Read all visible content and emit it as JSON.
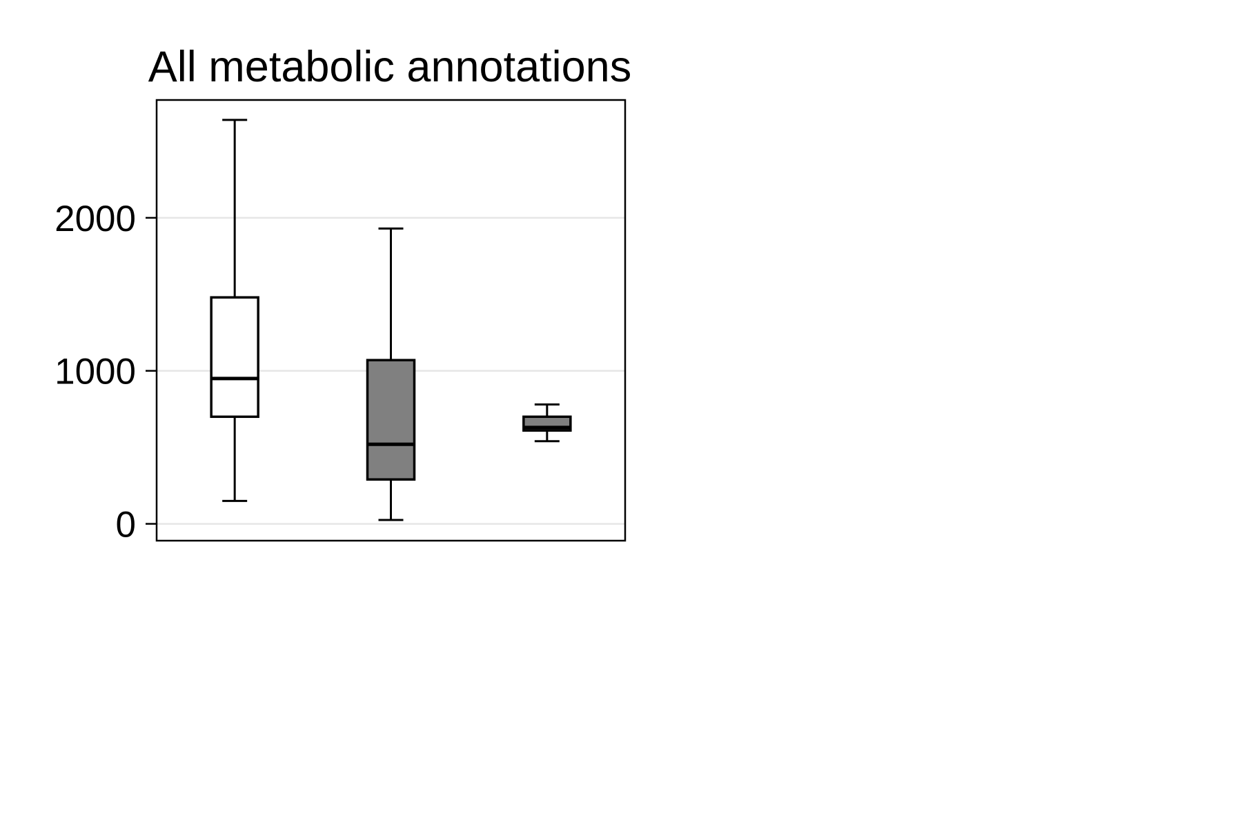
{
  "chart_data": {
    "type": "box",
    "title": "All metabolic annotations",
    "xlabel": "",
    "ylabel": "",
    "categories": [
      "",
      "",
      ""
    ],
    "ylim": [
      -110,
      2770
    ],
    "yticks": [
      0,
      1000,
      2000
    ],
    "grid": true,
    "legend": "none",
    "boxes": [
      {
        "fill": "#ffffff",
        "whisker_low": 150,
        "q1": 700,
        "median": 950,
        "q3": 1480,
        "whisker_high": 2640
      },
      {
        "fill": "#808080",
        "whisker_low": 25,
        "q1": 290,
        "median": 520,
        "q3": 1070,
        "whisker_high": 1930
      },
      {
        "fill": "#808080",
        "whisker_low": 540,
        "q1": 610,
        "median": 630,
        "q3": 700,
        "whisker_high": 780
      }
    ],
    "colors": {
      "axis": "#000000",
      "grid": "#e6e6e6",
      "box_outline": "#000000"
    }
  }
}
